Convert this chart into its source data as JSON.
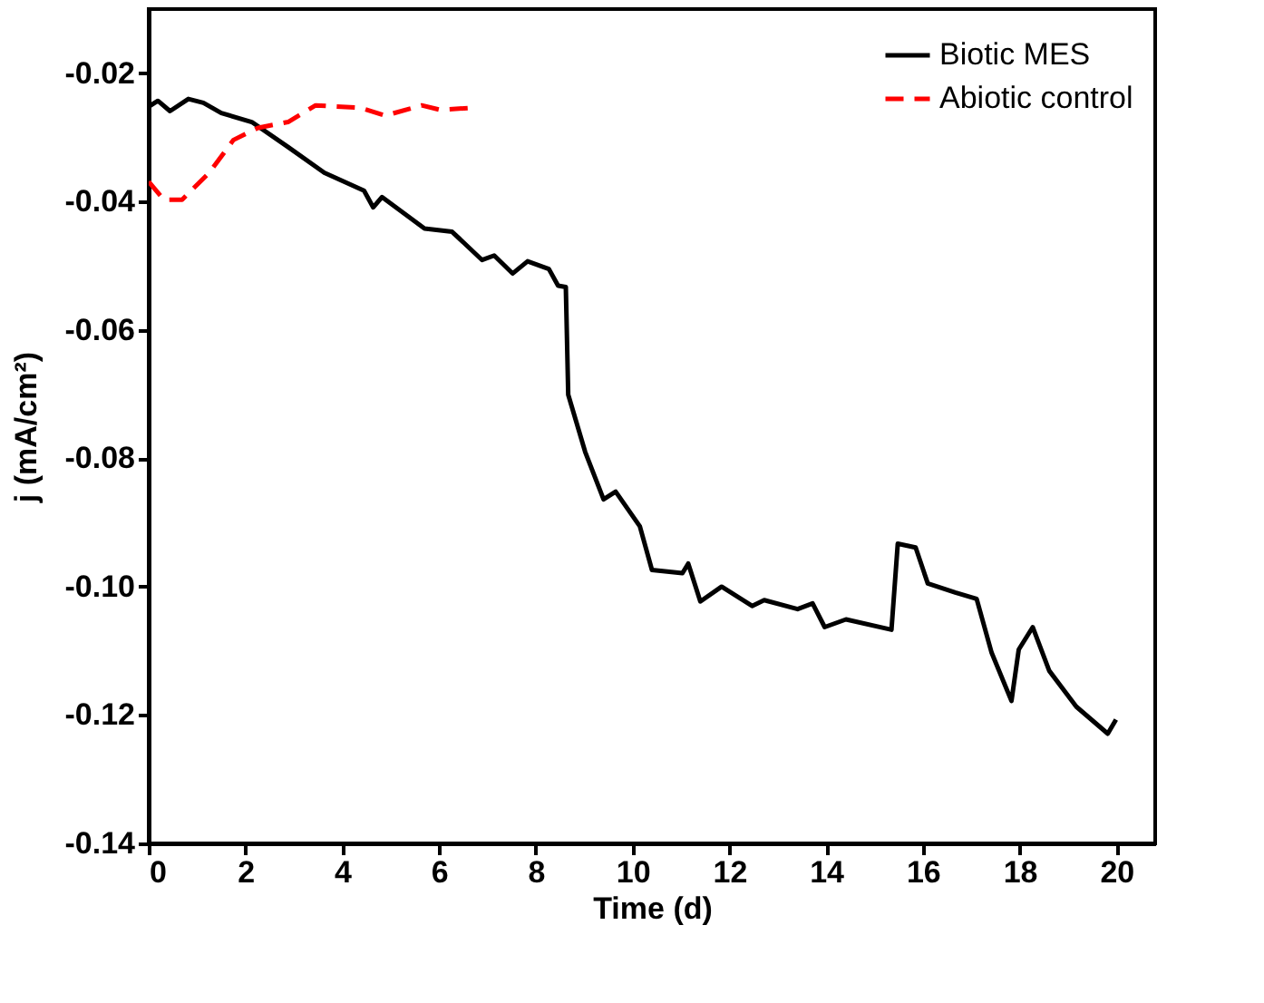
{
  "chart_data": {
    "type": "line",
    "xlabel": "Time (d)",
    "ylabel": "j (mA/cm²)",
    "xlim": [
      0,
      20.8
    ],
    "xticks": [
      0,
      2,
      4,
      6,
      8,
      10,
      12,
      14,
      16,
      18,
      20
    ],
    "ylim": [
      -0.14,
      -0.01
    ],
    "yticks": [
      {
        "value": -0.14,
        "label": "-0.14"
      },
      {
        "value": -0.12,
        "label": "-0.12"
      },
      {
        "value": -0.1,
        "label": "-0.10"
      },
      {
        "value": -0.08,
        "label": "-0.08"
      },
      {
        "value": -0.06,
        "label": "-0.06"
      },
      {
        "value": -0.04,
        "label": "-0.04"
      },
      {
        "value": -0.02,
        "label": "-0.02"
      }
    ],
    "grid": false,
    "legend": "top right",
    "marker": "none",
    "series": [
      {
        "name": "Biotic MES",
        "color": "#000000",
        "line_style": "solid",
        "x": [
          0,
          0.19,
          0.44,
          0.82,
          1.13,
          1.5,
          2.13,
          2.88,
          3.63,
          4.45,
          4.64,
          4.82,
          5.7,
          6.27,
          6.89,
          7.14,
          7.52,
          7.83,
          8.27,
          8.46,
          8.62,
          8.67,
          9.02,
          9.4,
          9.65,
          10.15,
          10.4,
          11.03,
          11.15,
          11.4,
          11.84,
          12.47,
          12.72,
          13.41,
          13.72,
          13.97,
          14.41,
          15.35,
          15.48,
          15.85,
          16.1,
          16.67,
          17.11,
          17.42,
          17.83,
          17.98,
          18.27,
          18.61,
          19.17,
          19.82,
          19.99
        ],
        "values": [
          -0.0252,
          -0.0243,
          -0.0259,
          -0.024,
          -0.0246,
          -0.0262,
          -0.0276,
          -0.0315,
          -0.0355,
          -0.0383,
          -0.0409,
          -0.0393,
          -0.0442,
          -0.0447,
          -0.0491,
          -0.0484,
          -0.0512,
          -0.0493,
          -0.0505,
          -0.0531,
          -0.0533,
          -0.0701,
          -0.079,
          -0.0864,
          -0.0852,
          -0.0906,
          -0.0974,
          -0.0979,
          -0.0964,
          -0.1023,
          -0.1,
          -0.103,
          -0.1021,
          -0.1035,
          -0.1026,
          -0.1063,
          -0.1051,
          -0.1067,
          -0.0933,
          -0.0939,
          -0.0995,
          -0.1009,
          -0.1019,
          -0.1103,
          -0.1178,
          -0.1098,
          -0.1063,
          -0.1131,
          -0.1187,
          -0.1229,
          -0.1207
        ]
      },
      {
        "name": "Abiotic control",
        "color": "#ff0000",
        "line_style": "dashed",
        "x": [
          0,
          0.31,
          0.69,
          1.25,
          1.75,
          2.26,
          2.88,
          3.45,
          4.39,
          4.89,
          5.64,
          6.02,
          6.64
        ],
        "values": [
          -0.0369,
          -0.0397,
          -0.0397,
          -0.0355,
          -0.0304,
          -0.0285,
          -0.0276,
          -0.025,
          -0.0254,
          -0.0266,
          -0.025,
          -0.0257,
          -0.0254
        ]
      }
    ]
  }
}
